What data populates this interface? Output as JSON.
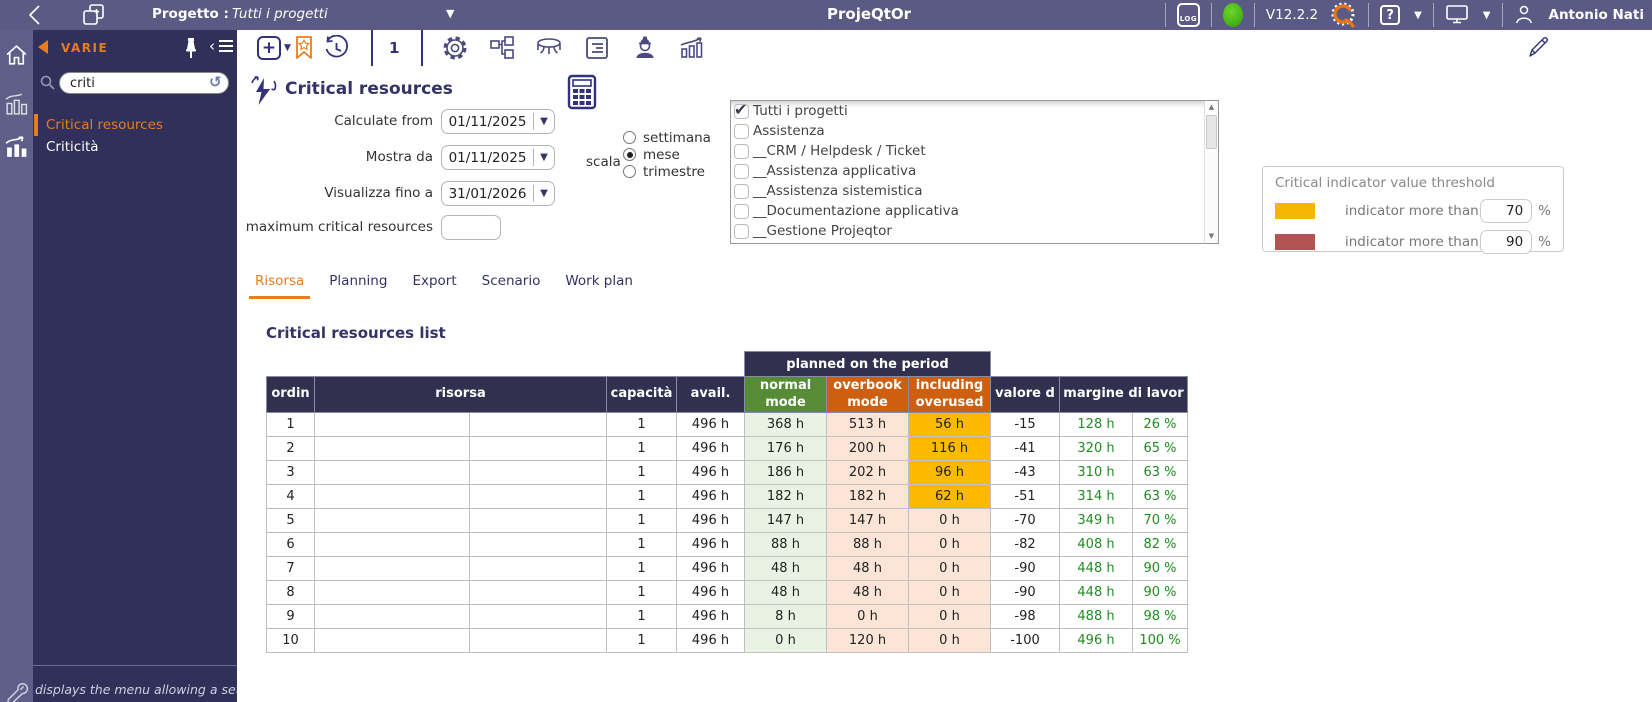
{
  "topbar": {
    "project_label": "Progetto :",
    "project_value": "Tutti i progetti",
    "app_title": "ProjeQtOr",
    "log_badge": "LOG",
    "version": "V12.2.2",
    "help_label": "?",
    "user_name": "Antonio Nati"
  },
  "sidebar": {
    "section_label": "VARIE",
    "search_value": "criti",
    "items": [
      {
        "label": "Critical resources",
        "active": true
      },
      {
        "label": "Criticità",
        "active": false
      }
    ],
    "status_text": "displays the menu allowing a setting of"
  },
  "toolbar": {
    "page_number": "1"
  },
  "header": {
    "title": "Critical resources"
  },
  "form": {
    "fields": [
      {
        "label": "Calculate from",
        "value": "01/11/2025"
      },
      {
        "label": "Mostra da",
        "value": "01/11/2025"
      },
      {
        "label": "Visualizza fino a",
        "value": "31/01/2026"
      }
    ],
    "max_label": "maximum critical resources",
    "max_value": "",
    "scala_label": "scala",
    "scala_options": [
      {
        "label": "settimana",
        "selected": false
      },
      {
        "label": "mese",
        "selected": true
      },
      {
        "label": "trimestre",
        "selected": false
      }
    ]
  },
  "projects": [
    {
      "label": "Tutti i progetti",
      "checked": true
    },
    {
      "label": "Assistenza",
      "checked": false
    },
    {
      "label": "__CRM / Helpdesk / Ticket",
      "checked": false
    },
    {
      "label": "__Assistenza applicativa",
      "checked": false
    },
    {
      "label": "__Assistenza sistemistica",
      "checked": false
    },
    {
      "label": "__Documentazione applicativa",
      "checked": false
    },
    {
      "label": "__Gestione Projeqtor",
      "checked": false
    }
  ],
  "threshold": {
    "title": "Critical indicator value threshold",
    "rows": [
      {
        "color": "#f5b500",
        "label": "indicator more than",
        "value": "70",
        "unit": "%"
      },
      {
        "color": "#b15352",
        "label": "indicator more than",
        "value": "90",
        "unit": "%"
      }
    ]
  },
  "tabs": [
    {
      "label": "Risorsa",
      "active": true
    },
    {
      "label": "Planning",
      "active": false
    },
    {
      "label": "Export",
      "active": false
    },
    {
      "label": "Scenario",
      "active": false
    },
    {
      "label": "Work plan",
      "active": false
    }
  ],
  "list_title": "Critical resources list",
  "table": {
    "group_header": "planned on the period",
    "columns": [
      "ordin",
      "risorsa",
      "capacità",
      "avail.",
      "normal mode",
      "overbook mode",
      "including overused",
      "valore d",
      "margine di lavor"
    ],
    "rows": [
      {
        "ordin": "1",
        "risorsa": "",
        "capacita": "1",
        "avail": "496 h",
        "normal": "368 h",
        "overbook": "513 h",
        "overused": "56 h",
        "overused_hot": true,
        "valore": "-15",
        "margine_h": "128 h",
        "margine_pct": "26 %"
      },
      {
        "ordin": "2",
        "risorsa": "",
        "capacita": "1",
        "avail": "496 h",
        "normal": "176 h",
        "overbook": "200 h",
        "overused": "116 h",
        "overused_hot": true,
        "valore": "-41",
        "margine_h": "320 h",
        "margine_pct": "65 %"
      },
      {
        "ordin": "3",
        "risorsa": "",
        "capacita": "1",
        "avail": "496 h",
        "normal": "186 h",
        "overbook": "202 h",
        "overused": "96 h",
        "overused_hot": true,
        "valore": "-43",
        "margine_h": "310 h",
        "margine_pct": "63 %"
      },
      {
        "ordin": "4",
        "risorsa": "",
        "capacita": "1",
        "avail": "496 h",
        "normal": "182 h",
        "overbook": "182 h",
        "overused": "62 h",
        "overused_hot": true,
        "valore": "-51",
        "margine_h": "314 h",
        "margine_pct": "63 %"
      },
      {
        "ordin": "5",
        "risorsa": "",
        "capacita": "1",
        "avail": "496 h",
        "normal": "147 h",
        "overbook": "147 h",
        "overused": "0 h",
        "overused_hot": false,
        "valore": "-70",
        "margine_h": "349 h",
        "margine_pct": "70 %"
      },
      {
        "ordin": "6",
        "risorsa": "",
        "capacita": "1",
        "avail": "496 h",
        "normal": "88 h",
        "overbook": "88 h",
        "overused": "0 h",
        "overused_hot": false,
        "valore": "-82",
        "margine_h": "408 h",
        "margine_pct": "82 %"
      },
      {
        "ordin": "7",
        "risorsa": "",
        "capacita": "1",
        "avail": "496 h",
        "normal": "48 h",
        "overbook": "48 h",
        "overused": "0 h",
        "overused_hot": false,
        "valore": "-90",
        "margine_h": "448 h",
        "margine_pct": "90 %"
      },
      {
        "ordin": "8",
        "risorsa": "",
        "capacita": "1",
        "avail": "496 h",
        "normal": "48 h",
        "overbook": "48 h",
        "overused": "0 h",
        "overused_hot": false,
        "valore": "-90",
        "margine_h": "448 h",
        "margine_pct": "90 %"
      },
      {
        "ordin": "9",
        "risorsa": "",
        "capacita": "1",
        "avail": "496 h",
        "normal": "8 h",
        "overbook": "0 h",
        "overused": "0 h",
        "overused_hot": false,
        "valore": "-98",
        "margine_h": "488 h",
        "margine_pct": "98 %"
      },
      {
        "ordin": "10",
        "risorsa": "",
        "capacita": "1",
        "avail": "496 h",
        "normal": "0 h",
        "overbook": "120 h",
        "overused": "0 h",
        "overused_hot": false,
        "valore": "-100",
        "margine_h": "496 h",
        "margine_pct": "100 %"
      }
    ]
  },
  "colors": {
    "accent_orange": "#e87c1e",
    "amber": "#fbba00",
    "header_green": "#568c35",
    "header_orange": "#cc5f10",
    "navy": "#31314f"
  }
}
